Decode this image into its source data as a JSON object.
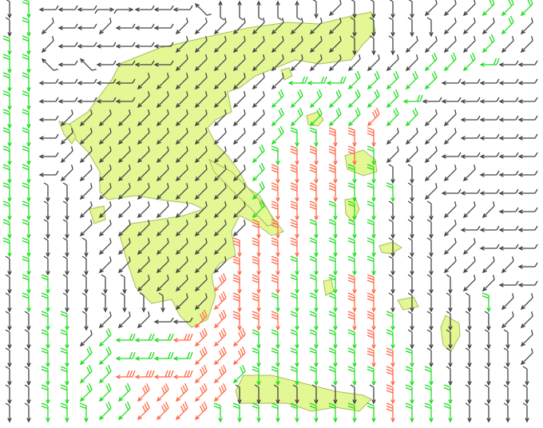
{
  "map": {
    "land_color": "#e3f794",
    "coast_color": "#a8bd5a",
    "speed_colors": {
      "k": "#444444",
      "g": "#22dd22",
      "r": "#ff6a48"
    },
    "direction_codes": [
      "N",
      "NE",
      "E",
      "SE",
      "S",
      "SW",
      "W",
      "NW"
    ],
    "wind_class_rows": [
      "kgkkkkkkkkkkkkkkkkkkkkkkkggg",
      "kgkkkkkkkkkkkkkkkkkkkkkkkkgk",
      "ggkkkkkkkkkkkkkkkkkkkkkkkgkk",
      "ggkkkkkkkkkkkkkkkkkkkkggggkk",
      "ggkkkkkkkkkkkkkggggggggkkkkk",
      "ggkkkkkkkkkkkkggggggggkkkkkk",
      "ggkkkkkkkkkkkkgggggrggkkkkkk",
      "ggkkkkkkkkkkkkgggrrrkkkkkkkk",
      "ggkkkkkkkkkkkggrrrrgkkkkkkkk",
      "ggkkkkkkkkkkkgrrrrggkkkkkkkk",
      "ggkkkkkkkkkkkgrrrrgggkkkkkkk",
      "ggkkkkkkkkkkkgrrrgggkkkkkkkk",
      "ggkkkkkkkkkkkrrrggggkkkkkkkk",
      "ggkkkkkkkkkkrrrrggggkkkkkkkk",
      "kgkkkkkkkkkkrrrgggggkkkkkkkk",
      "kggkkkkkkkkrrrrgggrrkkkkkkkk",
      "kggkkkkkkkkrrrggggrrkkkkkgkk",
      "kkggkkkkkkrrrrrgggrrgkkkkkkk",
      "kkggkggggrrrrggggggrgkkkkkkk",
      "kkggggggggrrrggggggrrgkkkkkk",
      "kkggggrrrrrrggggggggrggkkkkk",
      "kkgggggrrrrrkkkkkkkkrgggkkkk",
      "kkgggggrrrrgggggggggrgggkkkk"
    ],
    "wind_direction_rows": [
      "4466622666700000454444555555",
      "4456656665555555554444455555",
      "4456666665555555554445555555",
      "4476766665555555555555555666",
      "4466666555555556665555566666",
      "4466666555555555555556666666",
      "4465555555555555555555556666",
      "4465555555555554444455556666",
      "4465555555555544444455566666",
      "4465555555555544444444555666",
      "4444555555555544444444566666",
      "4444555555555544444444455566",
      "4444555555555444444444456666",
      "4444455555554444444444455666",
      "4444455555554444444444455556",
      "4444444555554444444444445566",
      "4444444445554444444444444455",
      "4444455566554444444444444455",
      "4444556666555444444444444445",
      "4444556666555444444444444445",
      "4444556666555444444444444444",
      "4444555555554444444444444444",
      "4444455555544444444444444444"
    ]
  }
}
